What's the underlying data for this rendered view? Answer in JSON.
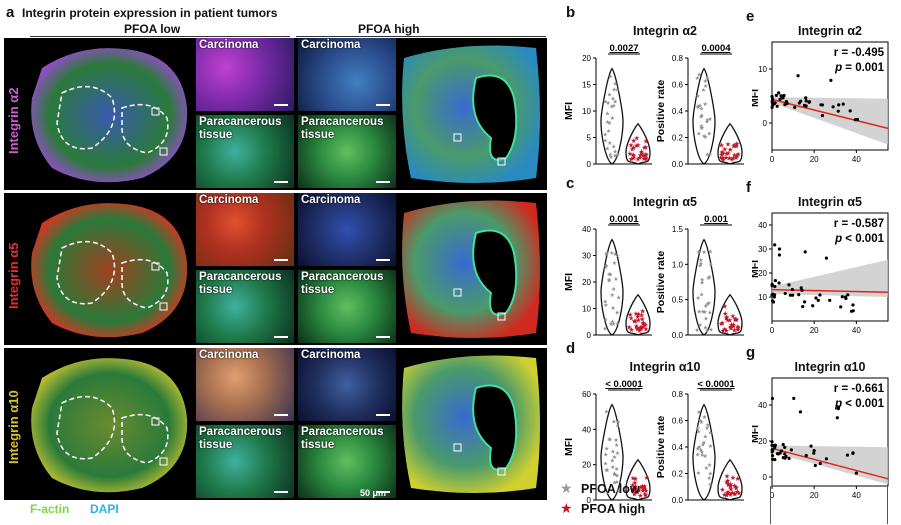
{
  "panel_a": {
    "letter": "a",
    "title": "Integrin protein expression in patient tumors",
    "group_low": "PFOA low",
    "group_high": "PFOA high",
    "rows": [
      {
        "label": "Integrin α2",
        "color": "#d05cd8"
      },
      {
        "label": "Integrin α5",
        "color": "#e5302a"
      },
      {
        "label": "Integrin α10",
        "color": "#d8c428"
      }
    ],
    "tile_carcinoma": "Carcinoma",
    "tile_para_1": "Paracancerous",
    "tile_para_2": "tissue",
    "scale_bar": "50 μm",
    "legend_factin": "F-actin",
    "legend_dapi": "DAPI",
    "factin_color": "#7ed444",
    "dapi_color": "#26b4e6"
  },
  "legend": {
    "low": "PFOA low",
    "high": "PFOA high"
  },
  "violin_panels": [
    {
      "letter": "b",
      "title": "Integrin α2",
      "mfi": {
        "ylabel": "MFI",
        "ticks": [
          "0",
          "5",
          "10",
          "15",
          "20"
        ],
        "max": 20,
        "p": "0.0027"
      },
      "pos": {
        "ylabel": "Positive rate",
        "ticks": [
          "0.0",
          "0.2",
          "0.4",
          "0.6",
          "0.8"
        ],
        "max": 0.8,
        "p": "0.0004"
      }
    },
    {
      "letter": "c",
      "title": "Integrin α5",
      "mfi": {
        "ylabel": "MFI",
        "ticks": [
          "0",
          "10",
          "20",
          "30",
          "40"
        ],
        "max": 40,
        "p": "0.0001"
      },
      "pos": {
        "ylabel": "Positive rate",
        "ticks": [
          "0.0",
          "0.5",
          "1.0",
          "1.5"
        ],
        "max": 1.5,
        "p": "0.001"
      }
    },
    {
      "letter": "d",
      "title": "Integrin α10",
      "mfi": {
        "ylabel": "MFI",
        "ticks": [
          "0",
          "20",
          "40",
          "60"
        ],
        "max": 60,
        "p": "< 0.0001"
      },
      "pos": {
        "ylabel": "Positive rate",
        "ticks": [
          "0.0",
          "0.2",
          "0.4",
          "0.6",
          "0.8"
        ],
        "max": 0.8,
        "p": "< 0.0001"
      }
    }
  ],
  "scatter_panels": [
    {
      "letter": "e",
      "title": "Integrin α2",
      "ylabel": "MFI",
      "r": "r = -0.495",
      "p": "= 0.001",
      "yticks": [
        "0",
        "10"
      ],
      "ymax": 15,
      "xticks": [
        "0",
        "20",
        "40"
      ],
      "xmax": 55
    },
    {
      "letter": "f",
      "title": "Integrin α5",
      "ylabel": "MFI",
      "r": "r = -0.587",
      "p": "< 0.001",
      "yticks": [
        "10",
        "20",
        "30",
        "40"
      ],
      "ymax": 45,
      "xticks": [
        "0",
        "20",
        "40"
      ],
      "xmax": 55
    },
    {
      "letter": "g",
      "title": "Integrin α10",
      "ylabel": "MFI",
      "r": "r = -0.661",
      "p": "< 0.001",
      "yticks": [
        "0",
        "20",
        "40"
      ],
      "ymax": 55,
      "xticks": [
        "0",
        "20",
        "40"
      ],
      "xmax": 55
    }
  ],
  "colors": {
    "low": "#8f8f8f",
    "high": "#c0182a",
    "fit": "#e0241c",
    "band": "#c8c8c8"
  }
}
